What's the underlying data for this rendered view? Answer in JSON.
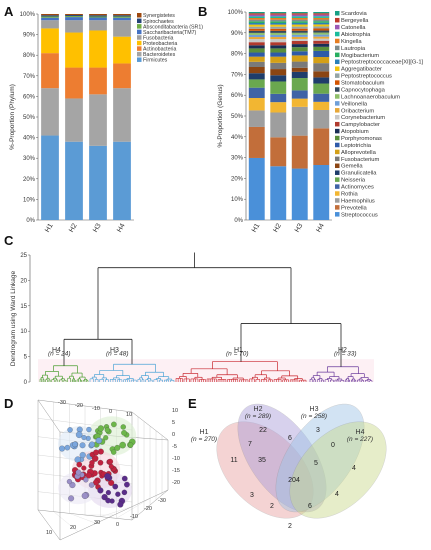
{
  "panels": {
    "a": "A",
    "b": "B",
    "c": "C",
    "d": "D",
    "e": "E"
  },
  "groups": [
    "H1",
    "H2",
    "H3",
    "H4"
  ],
  "colors": {
    "phylum": [
      "#5b9bd5",
      "#a5a5a5",
      "#ed7d31",
      "#ffc000",
      "#a0a0a0",
      "#4472c4",
      "#70ad47",
      "#264478",
      "#9e480e",
      "#636363"
    ],
    "genus": [
      "#4a90d9",
      "#c26e3a",
      "#9e9e9e",
      "#f2b632",
      "#3f63a6",
      "#6aa84f",
      "#1f3d6b",
      "#8b4513",
      "#7a7a7a",
      "#d4a017",
      "#2e5aa8",
      "#5a8f3a",
      "#1a2e55",
      "#b03a2e",
      "#c9c9c9",
      "#e8a838",
      "#6f9fd8",
      "#8fbf6a",
      "#34495e",
      "#d35400",
      "#95a5a6",
      "#f1c40f",
      "#2980b9",
      "#27ae60",
      "#7f8c8d",
      "#e67e22",
      "#1abc9c",
      "#9b59b6",
      "#c0392b",
      "#16a085"
    ],
    "h4": "#4a9d2f",
    "h3": "#4ba3d6",
    "h1": "#c8252d",
    "h2": "#6a3a9c"
  },
  "chart_data": [
    {
      "type": "bar",
      "stacked": true,
      "panel": "A",
      "categories": [
        "H1",
        "H2",
        "H3",
        "H4"
      ],
      "ylabel": "%-Proportion (Phylum)",
      "ylim": [
        0,
        100
      ],
      "yticks": [
        "0%",
        "10%",
        "20%",
        "30%",
        "40%",
        "50%",
        "60%",
        "70%",
        "80%",
        "90%",
        "100%"
      ],
      "series": [
        {
          "name": "Firmicutes",
          "values": [
            41,
            38,
            36,
            38
          ]
        },
        {
          "name": "Bacteroidetes",
          "values": [
            23,
            21,
            25,
            26
          ]
        },
        {
          "name": "Actinobacteria",
          "values": [
            17,
            15,
            13,
            12
          ]
        },
        {
          "name": "Proteobacteria",
          "values": [
            12,
            17,
            18,
            13
          ]
        },
        {
          "name": "Fusobacteria",
          "values": [
            4,
            6,
            5,
            8
          ]
        },
        {
          "name": "Saccharibacteria(TM7)",
          "values": [
            1.2,
            1.5,
            1.3,
            1.2
          ]
        },
        {
          "name": "Absconditabacteria (SR1)",
          "values": [
            0.6,
            0.5,
            0.5,
            0.6
          ]
        },
        {
          "name": "Spirochaetes",
          "values": [
            0.6,
            0.5,
            0.6,
            0.6
          ]
        },
        {
          "name": "Synergistetes",
          "values": [
            0.6,
            0.5,
            0.6,
            0.6
          ]
        }
      ],
      "legend": [
        "Synergistetes",
        "Spirochaetes",
        "Absconditabacteria (SR1)",
        "Saccharibacteria(TM7)",
        "Fusobacteria",
        "Proteobacteria",
        "Actinobacteria",
        "Bacteroidetes",
        "Firmicutes"
      ]
    },
    {
      "type": "bar",
      "stacked": true,
      "panel": "B",
      "categories": [
        "H1",
        "H2",
        "H3",
        "H4"
      ],
      "ylabel": "%-Proportion (Genus)",
      "ylim": [
        0,
        100
      ],
      "yticks": [
        "0%",
        "10%",
        "20%",
        "30%",
        "40%",
        "50%",
        "60%",
        "70%",
        "80%",
        "90%",
        "100%"
      ],
      "series": [
        {
          "name": "Streptococcus",
          "values": [
            30,
            26,
            25,
            27
          ]
        },
        {
          "name": "Prevotella",
          "values": [
            15,
            14,
            16,
            18
          ]
        },
        {
          "name": "Haemophilus",
          "values": [
            8,
            12,
            14,
            9
          ]
        },
        {
          "name": "Rothia",
          "values": [
            6,
            5,
            4,
            4
          ]
        },
        {
          "name": "Actinomyces",
          "values": [
            5,
            4,
            4,
            4
          ]
        },
        {
          "name": "Neisseria",
          "values": [
            4,
            6,
            6,
            5
          ]
        },
        {
          "name": "Granulicatella",
          "values": [
            3,
            3,
            3,
            3
          ]
        },
        {
          "name": "Gemella",
          "values": [
            3,
            3,
            2,
            3
          ]
        },
        {
          "name": "Fusobacterium",
          "values": [
            2.5,
            3,
            3,
            4
          ]
        },
        {
          "name": "Alloprevotella",
          "values": [
            2.5,
            3,
            3,
            3
          ]
        },
        {
          "name": "Leptotrichia",
          "values": [
            2,
            2,
            2,
            3
          ]
        },
        {
          "name": "Porphyromonas",
          "values": [
            2,
            2,
            2,
            2
          ]
        },
        {
          "name": "Atopobium",
          "values": [
            1.5,
            1.5,
            1.5,
            1.5
          ]
        },
        {
          "name": "Campylobacter",
          "values": [
            1.5,
            1.5,
            1.5,
            1.5
          ]
        },
        {
          "name": "Corynebacterium",
          "values": [
            1.5,
            1.5,
            1,
            1
          ]
        },
        {
          "name": "Oribacterium",
          "values": [
            1,
            1,
            1,
            1
          ]
        },
        {
          "name": "Veillonella",
          "values": [
            1,
            1,
            1,
            1
          ]
        },
        {
          "name": "Lachnoanaerobaculum",
          "values": [
            1,
            1,
            1,
            1
          ]
        },
        {
          "name": "Capnocytophaga",
          "values": [
            1,
            1,
            1,
            1
          ]
        },
        {
          "name": "Stomatobaculum",
          "values": [
            1,
            1,
            1,
            1
          ]
        },
        {
          "name": "Peptostreptococcus",
          "values": [
            1,
            1,
            1,
            1
          ]
        },
        {
          "name": "Aggregatibacter",
          "values": [
            1,
            1,
            1,
            1
          ]
        },
        {
          "name": "Peptostreptococcaceae[XI][G-1]",
          "values": [
            0.8,
            0.8,
            0.8,
            0.8
          ]
        },
        {
          "name": "Mogibacterium",
          "values": [
            0.8,
            0.8,
            0.8,
            0.8
          ]
        },
        {
          "name": "Lautropia",
          "values": [
            0.8,
            0.8,
            0.8,
            0.8
          ]
        },
        {
          "name": "Kingella",
          "values": [
            0.8,
            0.8,
            0.8,
            0.8
          ]
        },
        {
          "name": "Abiotrophia",
          "values": [
            0.8,
            0.8,
            0.8,
            0.8
          ]
        },
        {
          "name": "Catonella",
          "values": [
            0.8,
            0.8,
            0.8,
            0.8
          ]
        },
        {
          "name": "Bergeyella",
          "values": [
            0.7,
            0.7,
            0.7,
            0.7
          ]
        },
        {
          "name": "Scardovia",
          "values": [
            0.6,
            0.6,
            0.6,
            0.6
          ]
        }
      ],
      "legend": [
        "Scardovia",
        "Bergeyella",
        "Catonella",
        "Abiotrophia",
        "Kingella",
        "Lautropia",
        "Mogibacterium",
        "Peptostreptococcaceae[XI][G-1]",
        "Aggregatibacter",
        "Peptostreptococcus",
        "Stomatobaculum",
        "Capnocytophaga",
        "Lachnoanaerobaculum",
        "Veillonella",
        "Oribacterium",
        "Corynebacterium",
        "Campylobacter",
        "Atopobium",
        "Porphyromonas",
        "Leptotrichia",
        "Alloprevotella",
        "Fusobacterium",
        "Gemella",
        "Granulicatella",
        "Neisseria",
        "Actinomyces",
        "Rothia",
        "Haemophilus",
        "Prevotella",
        "Streptococcus"
      ]
    }
  ],
  "dendrogram": {
    "ylabel": "Dendrogram using Ward Linkage",
    "yticks": [
      "0",
      "5",
      "10",
      "15",
      "20",
      "25"
    ],
    "ylim": [
      0,
      25
    ],
    "clusters": [
      {
        "name": "H4",
        "n_label": "(n = 24)"
      },
      {
        "name": "H3",
        "n_label": "(n = 48)"
      },
      {
        "name": "H1",
        "n_label": "(n = 70)"
      },
      {
        "name": "H2",
        "n_label": "(n = 33)"
      }
    ]
  },
  "scatter3d": {
    "axis_ticks_left": [
      "-30",
      "-20",
      "-10",
      "0",
      "10"
    ],
    "axis_ticks_right": [
      "10",
      "5",
      "0",
      "-5",
      "-10",
      "-15",
      "-20"
    ],
    "axis_ticks_bottom_left": [
      "10",
      "20",
      "30"
    ],
    "axis_ticks_bottom_right": [
      "0",
      "-10",
      "-20",
      "-30"
    ]
  },
  "venn": {
    "sets": [
      {
        "name": "H1",
        "n_label": "(n = 270)"
      },
      {
        "name": "H2",
        "n_label": "(n = 289)"
      },
      {
        "name": "H3",
        "n_label": "(n = 258)"
      },
      {
        "name": "H4",
        "n_label": "(n = 227)"
      }
    ],
    "regions": [
      "22",
      "6",
      "3",
      "11",
      "7",
      "5",
      "0",
      "35",
      "204",
      "4",
      "3",
      "4",
      "2",
      "6",
      "2"
    ]
  }
}
